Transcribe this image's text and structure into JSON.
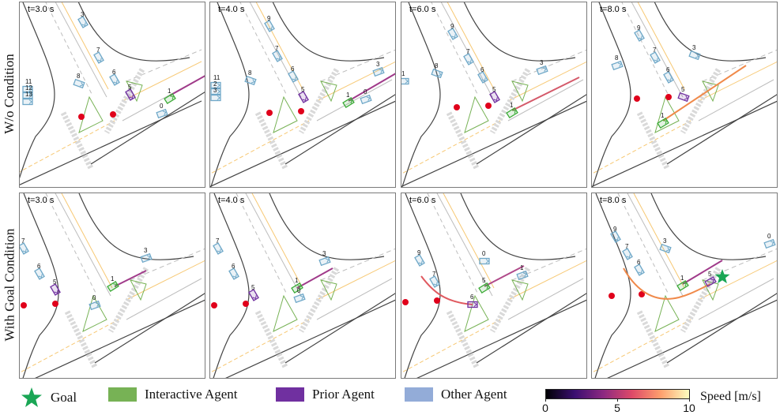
{
  "rows": [
    {
      "label": "W/o Condition",
      "panels": [
        {
          "time": "t=3.0 s",
          "variant": "a3",
          "ids": [
            "3",
            "7",
            "6",
            "5",
            "1",
            "0",
            "3",
            "8",
            "11",
            "12",
            "13"
          ]
        },
        {
          "time": "t=4.0 s",
          "variant": "a4",
          "ids": [
            "9",
            "7",
            "6",
            "5",
            "1",
            "0",
            "3",
            "8",
            "11",
            "2",
            "3"
          ]
        },
        {
          "time": "t=6.0 s",
          "variant": "a6",
          "ids": [
            "9",
            "7",
            "6",
            "5",
            "1",
            "3",
            "8",
            "1"
          ]
        },
        {
          "time": "t=8.0 s",
          "variant": "a8",
          "ids": [
            "9",
            "7",
            "6",
            "5",
            "1",
            "3",
            "8"
          ]
        }
      ]
    },
    {
      "label": "With Goal Condition",
      "panels": [
        {
          "time": "t=3.0 s",
          "variant": "b3",
          "ids": [
            "7",
            "6",
            "5",
            "1",
            "0",
            "3"
          ]
        },
        {
          "time": "t=4.0 s",
          "variant": "b4",
          "ids": [
            "7",
            "6",
            "5",
            "1",
            "0",
            "3"
          ]
        },
        {
          "time": "t=6.0 s",
          "variant": "b6",
          "ids": [
            "9",
            "7",
            "6",
            "5",
            "1",
            "0",
            "3"
          ]
        },
        {
          "time": "t=8.0 s",
          "variant": "b8",
          "ids": [
            "9",
            "7",
            "6",
            "5",
            "1",
            "3",
            "0"
          ]
        }
      ]
    }
  ],
  "legend": {
    "items": [
      {
        "label": "Goal",
        "shape": "star",
        "color": "#1aa655"
      },
      {
        "label": "Interactive Agent",
        "shape": "box",
        "color": "#77b255"
      },
      {
        "label": "Prior Agent",
        "shape": "box",
        "color": "#7030a0"
      },
      {
        "label": "Other Agent",
        "shape": "box",
        "color": "#93acd8"
      }
    ],
    "colorbar": {
      "label": "Speed [m/s]",
      "min": 0,
      "max": 10,
      "ticks": [
        "0",
        "5",
        "10"
      ],
      "colormap": "magma"
    }
  },
  "colors": {
    "interactive": "#3aaa35",
    "prior": "#7030a0",
    "other": "#6fa8c8",
    "stop": "#e0001b",
    "goal": "#1aa655",
    "lane_center": "#f7c873",
    "road": "#444444"
  }
}
